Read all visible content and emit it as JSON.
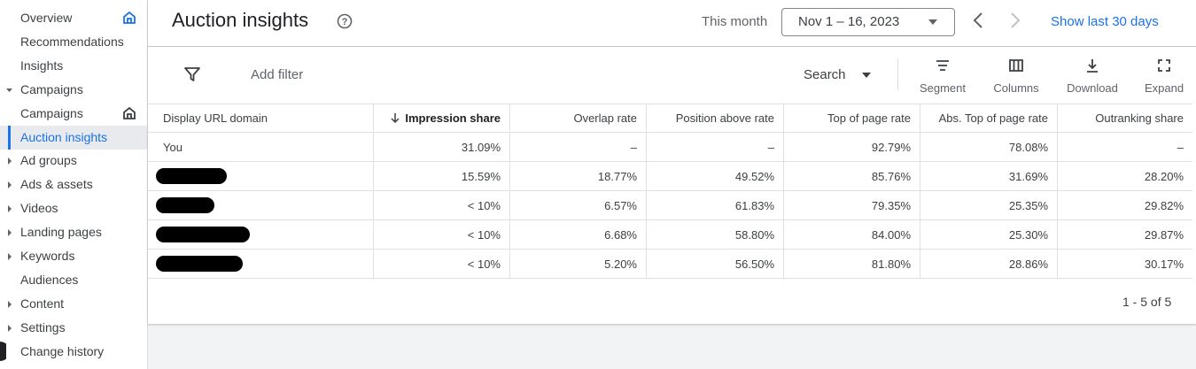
{
  "sidebar": {
    "items": [
      {
        "label": "Overview",
        "icon": "home"
      },
      {
        "label": "Recommendations"
      },
      {
        "label": "Insights"
      },
      {
        "label": "Campaigns",
        "arrow": "down"
      },
      {
        "label": "Campaigns",
        "icon": "home",
        "sub": true
      },
      {
        "label": "Auction insights",
        "selected": true,
        "sub": true
      },
      {
        "label": "Ad groups",
        "arrow": "right"
      },
      {
        "label": "Ads & assets",
        "arrow": "right"
      },
      {
        "label": "Videos",
        "arrow": "right"
      },
      {
        "label": "Landing pages",
        "arrow": "right"
      },
      {
        "label": "Keywords",
        "arrow": "right"
      },
      {
        "label": "Audiences"
      },
      {
        "label": "Content",
        "arrow": "right"
      },
      {
        "label": "Settings",
        "arrow": "right"
      },
      {
        "label": "Change history"
      }
    ]
  },
  "header": {
    "title": "Auction insights",
    "period_label": "This month",
    "date_range": "Nov 1 – 16, 2023",
    "show_last": "Show last 30 days"
  },
  "toolbar": {
    "add_filter": "Add filter",
    "search": "Search",
    "actions": [
      "Segment",
      "Columns",
      "Download",
      "Expand"
    ]
  },
  "table": {
    "columns": [
      "Display URL domain",
      "Impression share",
      "Overlap rate",
      "Position above rate",
      "Top of page rate",
      "Abs. Top of page rate",
      "Outranking share"
    ],
    "rows": [
      {
        "domain": "You",
        "cells": [
          "31.09%",
          "–",
          "–",
          "92.79%",
          "78.08%",
          "–"
        ]
      },
      {
        "cells": [
          "15.59%",
          "18.77%",
          "49.52%",
          "85.76%",
          "31.69%",
          "28.20%"
        ]
      },
      {
        "cells": [
          "< 10%",
          "6.57%",
          "61.83%",
          "79.35%",
          "25.35%",
          "29.82%"
        ]
      },
      {
        "cells": [
          "< 10%",
          "6.68%",
          "58.80%",
          "84.00%",
          "25.30%",
          "29.87%"
        ]
      },
      {
        "cells": [
          "< 10%",
          "5.20%",
          "56.50%",
          "81.80%",
          "28.86%",
          "30.17%"
        ]
      }
    ],
    "pagination": "1 - 5 of 5"
  }
}
